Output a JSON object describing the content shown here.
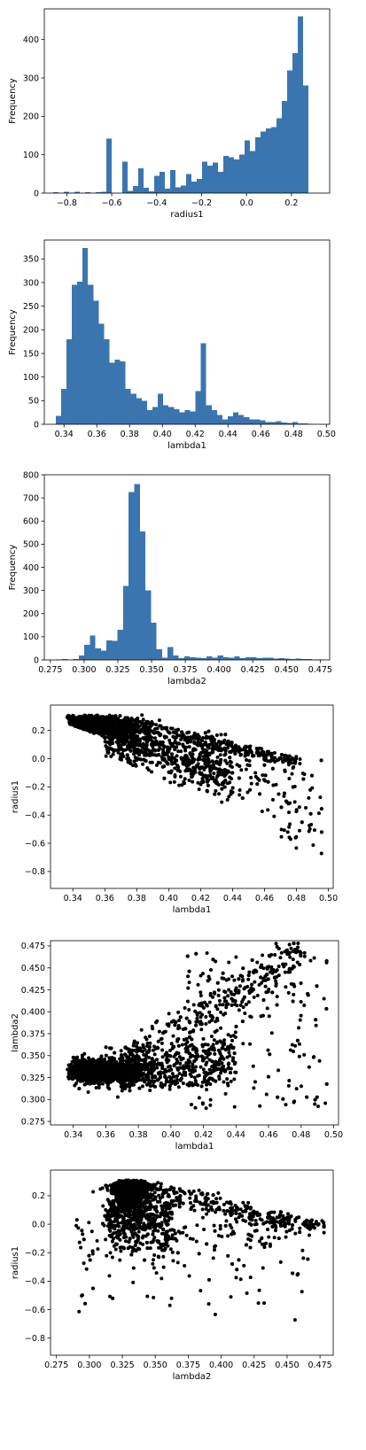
{
  "chart_data": [
    {
      "type": "bar",
      "chart_kind": "histogram",
      "xlabel": "radius1",
      "ylabel": "Frequency",
      "xlim": [
        -0.9,
        0.37
      ],
      "ylim": [
        0,
        480
      ],
      "xticks": [
        -0.8,
        -0.6,
        -0.4,
        -0.2,
        0.0,
        0.2
      ],
      "xtick_labels": [
        "−0.8",
        "−0.6",
        "−0.4",
        "−0.2",
        "0.0",
        "0.2"
      ],
      "yticks": [
        0,
        100,
        200,
        300,
        400
      ],
      "color": "#3b75af",
      "bin_start": -0.86,
      "bin_width": 0.02367,
      "values": [
        2,
        0,
        3,
        1,
        4,
        0,
        2,
        0,
        2,
        3,
        142,
        0,
        0,
        82,
        6,
        18,
        65,
        14,
        5,
        45,
        55,
        12,
        60,
        15,
        20,
        50,
        30,
        37,
        82,
        72,
        80,
        55,
        97,
        93,
        88,
        100,
        137,
        110,
        145,
        160,
        168,
        172,
        195,
        240,
        320,
        365,
        460,
        280
      ]
    },
    {
      "type": "bar",
      "chart_kind": "histogram",
      "xlabel": "lambda1",
      "ylabel": "Frequency",
      "xlim": [
        0.328,
        0.502
      ],
      "ylim": [
        0,
        390
      ],
      "xticks": [
        0.34,
        0.36,
        0.38,
        0.4,
        0.42,
        0.44,
        0.46,
        0.48,
        0.5
      ],
      "xtick_labels": [
        "0.34",
        "0.36",
        "0.38",
        "0.40",
        "0.42",
        "0.44",
        "0.46",
        "0.48",
        "0.50"
      ],
      "yticks": [
        0,
        50,
        100,
        150,
        200,
        250,
        300,
        350
      ],
      "color": "#3b75af",
      "bin_start": 0.3349,
      "bin_width": 0.00328,
      "values": [
        18,
        75,
        180,
        295,
        302,
        373,
        295,
        262,
        213,
        180,
        130,
        137,
        133,
        75,
        65,
        55,
        50,
        30,
        37,
        65,
        40,
        37,
        32,
        25,
        30,
        27,
        70,
        172,
        40,
        30,
        20,
        10,
        17,
        25,
        20,
        15,
        10,
        10,
        8,
        5,
        5,
        7,
        4,
        3,
        5,
        2,
        2,
        1
      ]
    },
    {
      "type": "bar",
      "chart_kind": "histogram",
      "xlabel": "lambda2",
      "ylabel": "Frequency",
      "xlim": [
        0.2705,
        0.482
      ],
      "ylim": [
        0,
        800
      ],
      "xticks": [
        0.275,
        0.3,
        0.325,
        0.35,
        0.375,
        0.4,
        0.425,
        0.45,
        0.475
      ],
      "xtick_labels": [
        "0.275",
        "0.300",
        "0.325",
        "0.350",
        "0.375",
        "0.400",
        "0.425",
        "0.450",
        "0.475"
      ],
      "yticks": [
        0,
        100,
        200,
        300,
        400,
        500,
        600,
        700,
        800
      ],
      "color": "#3b75af",
      "bin_start": 0.2795,
      "bin_width": 0.00412,
      "values": [
        2,
        3,
        0,
        4,
        20,
        65,
        105,
        50,
        40,
        85,
        82,
        130,
        320,
        725,
        760,
        555,
        300,
        160,
        45,
        10,
        55,
        20,
        8,
        15,
        12,
        10,
        8,
        15,
        10,
        20,
        12,
        10,
        15,
        8,
        12,
        12,
        8,
        10,
        10,
        6,
        8,
        5,
        4,
        5,
        3,
        4,
        2,
        1
      ]
    },
    {
      "type": "scatter",
      "xlabel": "lambda1",
      "ylabel": "radius1",
      "xlim": [
        0.326,
        0.503
      ],
      "ylim": [
        -0.92,
        0.38
      ],
      "xticks": [
        0.34,
        0.36,
        0.38,
        0.4,
        0.42,
        0.44,
        0.46,
        0.48,
        0.5
      ],
      "xtick_labels": [
        "0.34",
        "0.36",
        "0.38",
        "0.40",
        "0.42",
        "0.44",
        "0.46",
        "0.48",
        "0.50"
      ],
      "yticks": [
        0.2,
        0.0,
        -0.2,
        -0.4,
        -0.6,
        -0.8
      ],
      "ytick_labels": [
        "0.2",
        "0.0",
        "−0.2",
        "−0.4",
        "−0.6",
        "−0.8"
      ],
      "color": "#000000",
      "n_points": 3000
    },
    {
      "type": "scatter",
      "xlabel": "lambda1",
      "ylabel": "lambda2",
      "xlim": [
        0.326,
        0.503
      ],
      "ylim": [
        0.271,
        0.481
      ],
      "xticks": [
        0.34,
        0.36,
        0.38,
        0.4,
        0.42,
        0.44,
        0.46,
        0.48,
        0.5
      ],
      "xtick_labels": [
        "0.34",
        "0.36",
        "0.38",
        "0.40",
        "0.42",
        "0.44",
        "0.46",
        "0.48",
        "0.50"
      ],
      "yticks": [
        0.275,
        0.3,
        0.325,
        0.35,
        0.375,
        0.4,
        0.425,
        0.45,
        0.475
      ],
      "ytick_labels": [
        "0.275",
        "0.300",
        "0.325",
        "0.350",
        "0.375",
        "0.400",
        "0.425",
        "0.450",
        "0.475"
      ],
      "color": "#000000",
      "n_points": 3000
    },
    {
      "type": "scatter",
      "xlabel": "lambda2",
      "ylabel": "radius1",
      "xlim": [
        0.2705,
        0.485
      ],
      "ylim": [
        -0.92,
        0.38
      ],
      "xticks": [
        0.275,
        0.3,
        0.325,
        0.35,
        0.375,
        0.4,
        0.425,
        0.45,
        0.475
      ],
      "xtick_labels": [
        "0.275",
        "0.300",
        "0.325",
        "0.350",
        "0.375",
        "0.400",
        "0.425",
        "0.450",
        "0.475"
      ],
      "yticks": [
        0.2,
        0.0,
        -0.2,
        -0.4,
        -0.6,
        -0.8
      ],
      "ytick_labels": [
        "0.2",
        "0.0",
        "−0.2",
        "−0.4",
        "−0.6",
        "−0.8"
      ],
      "color": "#000000",
      "n_points": 3000
    }
  ]
}
